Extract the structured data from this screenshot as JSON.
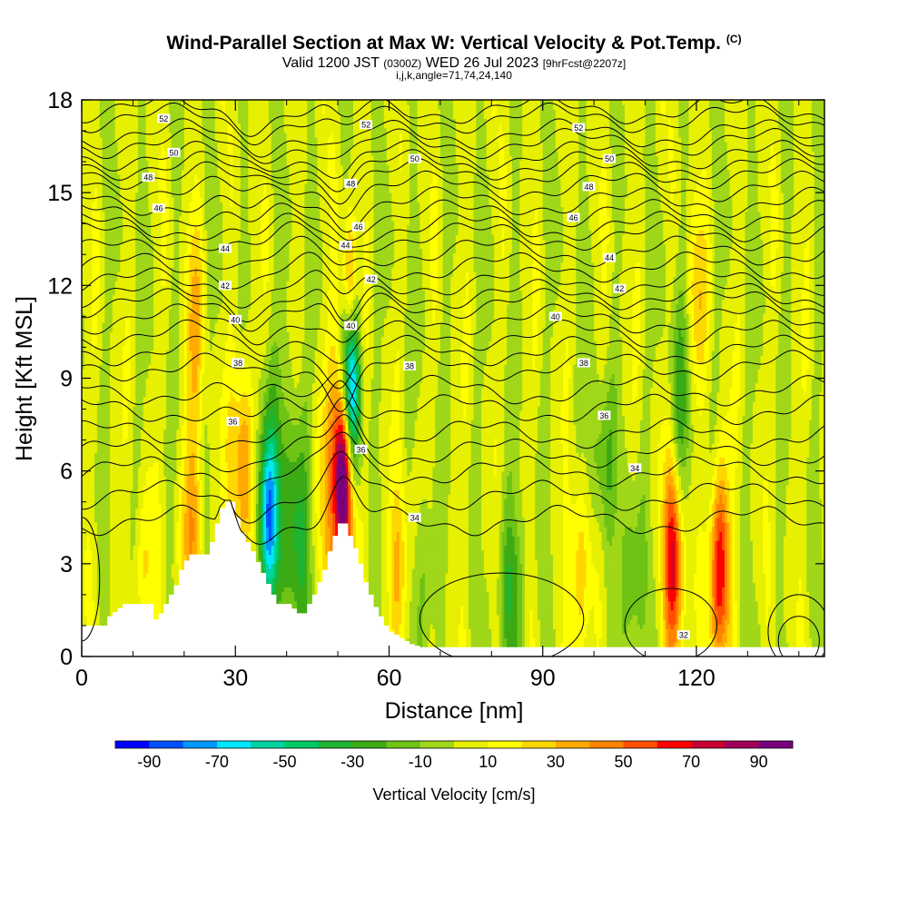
{
  "title": {
    "main": "Wind-Parallel Section at Max W: Vertical Velocity & Pot.Temp.",
    "copyright": "(C)",
    "valid_prefix": "Valid 1200 JST",
    "valid_utc": "(0300Z)",
    "valid_date": "WED 26 Jul 2023",
    "forecast": "[9hrFcst@2207z]",
    "indices": "i,j,k,angle=71,74,24,140"
  },
  "chart_data": {
    "type": "heatmap",
    "xlabel": "Distance [nm]",
    "ylabel": "Height [Kft MSL]",
    "xlim": [
      0,
      145
    ],
    "ylim": [
      0,
      18
    ],
    "xticks": [
      0,
      30,
      60,
      90,
      120
    ],
    "yticks": [
      0,
      3,
      6,
      9,
      12,
      15,
      18
    ],
    "x_minor_step": 10,
    "colorbar": {
      "label": "Vertical Velocity [cm/s]",
      "tick_labels": [
        "-90",
        "-70",
        "-50",
        "-30",
        "-10",
        "10",
        "30",
        "50",
        "70",
        "90"
      ],
      "levels": [
        -100,
        -90,
        -80,
        -70,
        -60,
        -50,
        -40,
        -30,
        -20,
        -10,
        0,
        10,
        20,
        30,
        40,
        50,
        60,
        70,
        80,
        90,
        100
      ],
      "colors": [
        "#0000ff",
        "#0050ff",
        "#0096ff",
        "#00e6ff",
        "#00d2a0",
        "#00c864",
        "#1eb432",
        "#3caa14",
        "#6ec314",
        "#a0d719",
        "#e6f000",
        "#ffff00",
        "#ffd700",
        "#ffaa00",
        "#ff8200",
        "#ff5000",
        "#ff0000",
        "#c80032",
        "#a0005a",
        "#78007d"
      ]
    },
    "terrain": [
      [
        0,
        1.0
      ],
      [
        4,
        1.0
      ],
      [
        5,
        1.3
      ],
      [
        8,
        1.7
      ],
      [
        13,
        1.7
      ],
      [
        14,
        1.2
      ],
      [
        15,
        1.4
      ],
      [
        16,
        1.7
      ],
      [
        17,
        2.0
      ],
      [
        18,
        2.3
      ],
      [
        19,
        2.8
      ],
      [
        20,
        3.1
      ],
      [
        21,
        3.3
      ],
      [
        24,
        3.3
      ],
      [
        25,
        3.7
      ],
      [
        26,
        4.3
      ],
      [
        27,
        4.8
      ],
      [
        28,
        5.0
      ],
      [
        29,
        5.0
      ],
      [
        30,
        4.5
      ],
      [
        31,
        4.0
      ],
      [
        33,
        3.4
      ],
      [
        35,
        2.7
      ],
      [
        37,
        2.0
      ],
      [
        38,
        1.7
      ],
      [
        40,
        1.7
      ],
      [
        42,
        1.4
      ],
      [
        43,
        1.4
      ],
      [
        44,
        1.7
      ],
      [
        45,
        2.0
      ],
      [
        46,
        2.4
      ],
      [
        47,
        2.8
      ],
      [
        48,
        3.4
      ],
      [
        49,
        3.9
      ],
      [
        50,
        4.3
      ],
      [
        51,
        4.3
      ],
      [
        52,
        3.9
      ],
      [
        53,
        3.5
      ],
      [
        54,
        3.0
      ],
      [
        55,
        2.4
      ],
      [
        56,
        2.0
      ],
      [
        57,
        1.6
      ],
      [
        58,
        1.3
      ],
      [
        59,
        1.0
      ],
      [
        60,
        0.8
      ],
      [
        62,
        0.6
      ],
      [
        64,
        0.4
      ],
      [
        66,
        0.3
      ],
      [
        145,
        0.3
      ]
    ],
    "w_features": [
      {
        "x": 51,
        "y": 5.8,
        "value": 80,
        "width_nm": 1.6,
        "height_kft": 2.6
      },
      {
        "x": 50.5,
        "y": 5.5,
        "value": 45,
        "width_nm": 3.5,
        "height_kft": 4.5
      },
      {
        "x": 52.3,
        "y": 11.8,
        "value": 45,
        "width_nm": 1.2,
        "height_kft": 2.4
      },
      {
        "x": 52.3,
        "y": 9.0,
        "value": -70,
        "width_nm": 1.5,
        "height_kft": 2.6
      },
      {
        "x": 53.2,
        "y": 7.8,
        "value": -45,
        "width_nm": 1.6,
        "height_kft": 3.2
      },
      {
        "x": 36.5,
        "y": 4.5,
        "value": -50,
        "width_nm": 1.8,
        "height_kft": 2.4
      },
      {
        "x": 36.5,
        "y": 4.8,
        "value": -30,
        "width_nm": 4.0,
        "height_kft": 4.5
      },
      {
        "x": 42,
        "y": 4.0,
        "value": -30,
        "width_nm": 2.5,
        "height_kft": 4.5
      },
      {
        "x": 31.5,
        "y": 6.2,
        "value": 45,
        "width_nm": 2.6,
        "height_kft": 3.5
      },
      {
        "x": 21.5,
        "y": 4.2,
        "value": 35,
        "width_nm": 2.2,
        "height_kft": 3.0
      },
      {
        "x": 22,
        "y": 10.8,
        "value": 25,
        "width_nm": 2.0,
        "height_kft": 3.5
      },
      {
        "x": 115.5,
        "y": 3.2,
        "value": 80,
        "width_nm": 1.8,
        "height_kft": 3.6
      },
      {
        "x": 124.5,
        "y": 2.8,
        "value": 70,
        "width_nm": 2.0,
        "height_kft": 3.2
      },
      {
        "x": 116.5,
        "y": 7.5,
        "value": -30,
        "width_nm": 2.2,
        "height_kft": 4.0
      },
      {
        "x": 97,
        "y": 2.6,
        "value": 30,
        "width_nm": 2.0,
        "height_kft": 3.5
      },
      {
        "x": 62,
        "y": 2.8,
        "value": 30,
        "width_nm": 2.0,
        "height_kft": 2.8
      },
      {
        "x": 67,
        "y": 2.5,
        "value": -20,
        "width_nm": 2.0,
        "height_kft": 3.0
      },
      {
        "x": 84,
        "y": 2.2,
        "value": -30,
        "width_nm": 2.5,
        "height_kft": 2.8
      },
      {
        "x": 107,
        "y": 2.2,
        "value": -25,
        "width_nm": 2.2,
        "height_kft": 2.8
      },
      {
        "x": 120,
        "y": 11.5,
        "value": 25,
        "width_nm": 2.0,
        "height_kft": 3.0
      },
      {
        "x": 101,
        "y": 6.2,
        "value": -20,
        "width_nm": 3.5,
        "height_kft": 2.5
      },
      {
        "x": 12,
        "y": 2.5,
        "value": 20,
        "width_nm": 2.0,
        "height_kft": 2.5
      }
    ],
    "theta_levels": [
      {
        "label": "34",
        "base": 4.4
      },
      {
        "label": "36",
        "base": 7.2
      },
      {
        "label": "38",
        "base": 9.4
      },
      {
        "label": "40",
        "base": 10.9
      },
      {
        "label": "42",
        "base": 12.1
      },
      {
        "label": "44",
        "base": 13.1
      },
      {
        "label": "46",
        "base": 14.3
      },
      {
        "label": "48",
        "base": 15.2
      },
      {
        "label": "50",
        "base": 16.2
      },
      {
        "label": "52",
        "base": 17.4
      }
    ],
    "theta_labels": [
      {
        "text": "52",
        "x": 16,
        "y": 17.4
      },
      {
        "text": "52",
        "x": 55.5,
        "y": 17.2
      },
      {
        "text": "52",
        "x": 97,
        "y": 17.1
      },
      {
        "text": "50",
        "x": 18,
        "y": 16.3
      },
      {
        "text": "50",
        "x": 65,
        "y": 16.1
      },
      {
        "text": "50",
        "x": 103,
        "y": 16.1
      },
      {
        "text": "48",
        "x": 13,
        "y": 15.5
      },
      {
        "text": "48",
        "x": 52.5,
        "y": 15.3
      },
      {
        "text": "48",
        "x": 99,
        "y": 15.2
      },
      {
        "text": "46",
        "x": 15,
        "y": 14.5
      },
      {
        "text": "46",
        "x": 54,
        "y": 13.9
      },
      {
        "text": "46",
        "x": 96,
        "y": 14.2
      },
      {
        "text": "44",
        "x": 28,
        "y": 13.2
      },
      {
        "text": "44",
        "x": 51.5,
        "y": 13.3
      },
      {
        "text": "44",
        "x": 103,
        "y": 12.9
      },
      {
        "text": "42",
        "x": 28,
        "y": 12.0
      },
      {
        "text": "42",
        "x": 56.5,
        "y": 12.2
      },
      {
        "text": "42",
        "x": 105,
        "y": 11.9
      },
      {
        "text": "40",
        "x": 30,
        "y": 10.9
      },
      {
        "text": "40",
        "x": 52.5,
        "y": 10.7
      },
      {
        "text": "40",
        "x": 92.5,
        "y": 11.0
      },
      {
        "text": "38",
        "x": 30.5,
        "y": 9.5
      },
      {
        "text": "38",
        "x": 64,
        "y": 9.4
      },
      {
        "text": "38",
        "x": 98,
        "y": 9.5
      },
      {
        "text": "36",
        "x": 29.5,
        "y": 7.6
      },
      {
        "text": "36",
        "x": 54.5,
        "y": 6.7
      },
      {
        "text": "36",
        "x": 102,
        "y": 7.8
      },
      {
        "text": "34",
        "x": 65,
        "y": 4.5
      },
      {
        "text": "34",
        "x": 108,
        "y": 6.1
      },
      {
        "text": "32",
        "x": 117.5,
        "y": 0.7
      }
    ]
  }
}
